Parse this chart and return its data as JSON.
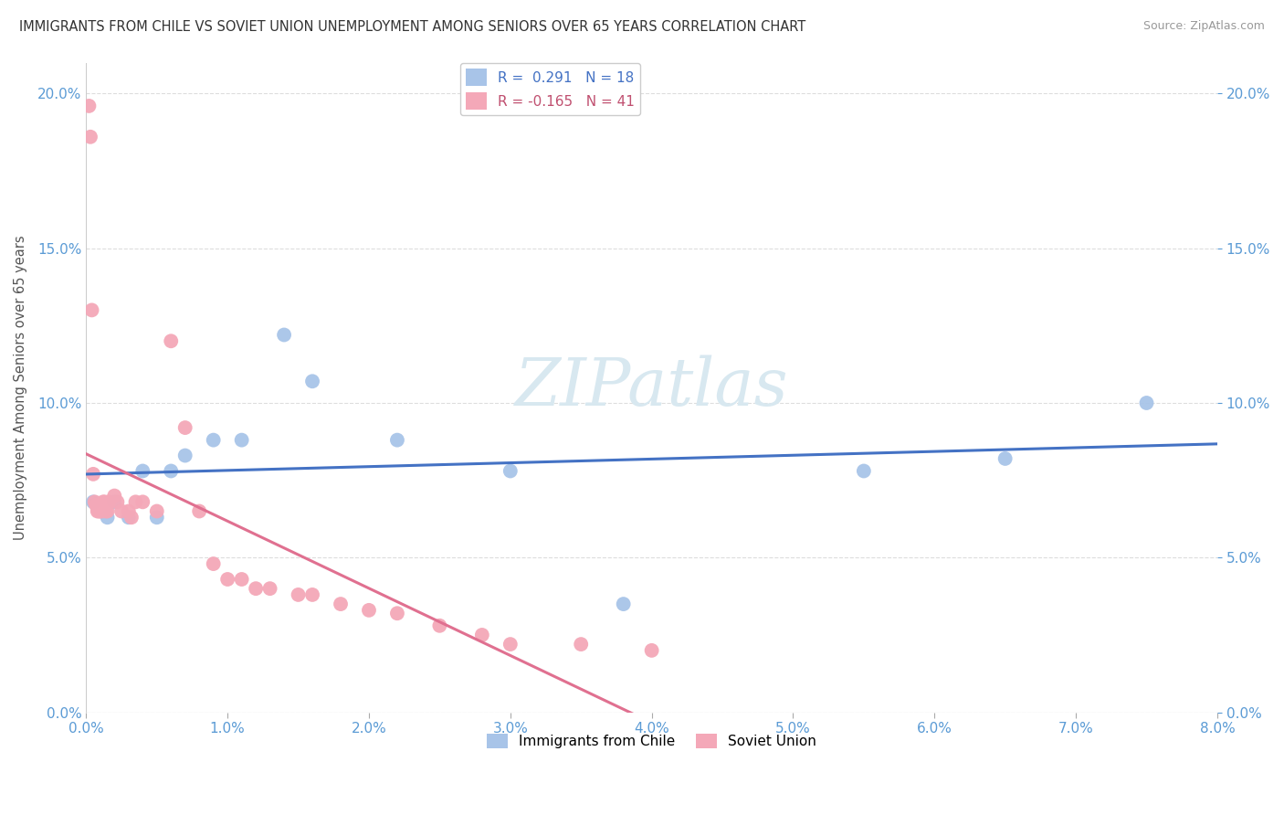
{
  "title": "IMMIGRANTS FROM CHILE VS SOVIET UNION UNEMPLOYMENT AMONG SENIORS OVER 65 YEARS CORRELATION CHART",
  "source": "Source: ZipAtlas.com",
  "ylabel": "Unemployment Among Seniors over 65 years",
  "xlim": [
    0.0,
    0.08
  ],
  "ylim": [
    0.0,
    0.21
  ],
  "xticks": [
    0.0,
    0.01,
    0.02,
    0.03,
    0.04,
    0.05,
    0.06,
    0.07,
    0.08
  ],
  "yticks": [
    0.0,
    0.05,
    0.1,
    0.15,
    0.2
  ],
  "chile_R": 0.291,
  "chile_N": 18,
  "soviet_R": -0.165,
  "soviet_N": 41,
  "chile_color": "#a8c4e8",
  "soviet_color": "#f4a8b8",
  "chile_line_color": "#4472c4",
  "soviet_line_color": "#e07090",
  "background_color": "#ffffff",
  "grid_color": "#dddddd",
  "axis_tick_color": "#5b9bd5",
  "watermark_color": "#d8e8f0",
  "watermark": "ZIPatlas",
  "chile_x": [
    0.0005,
    0.0015,
    0.002,
    0.003,
    0.004,
    0.005,
    0.006,
    0.007,
    0.009,
    0.011,
    0.014,
    0.016,
    0.022,
    0.03,
    0.038,
    0.055,
    0.065,
    0.075
  ],
  "chile_y": [
    0.068,
    0.063,
    0.068,
    0.063,
    0.078,
    0.063,
    0.078,
    0.083,
    0.088,
    0.088,
    0.122,
    0.107,
    0.088,
    0.078,
    0.035,
    0.078,
    0.082,
    0.1
  ],
  "soviet_x": [
    0.0002,
    0.0003,
    0.0004,
    0.0005,
    0.0006,
    0.0007,
    0.0008,
    0.0009,
    0.001,
    0.0011,
    0.0012,
    0.0013,
    0.0014,
    0.0015,
    0.0016,
    0.002,
    0.0022,
    0.0025,
    0.003,
    0.0032,
    0.0035,
    0.004,
    0.005,
    0.006,
    0.007,
    0.008,
    0.009,
    0.01,
    0.011,
    0.012,
    0.013,
    0.015,
    0.016,
    0.018,
    0.02,
    0.022,
    0.025,
    0.028,
    0.03,
    0.035,
    0.04
  ],
  "soviet_y": [
    0.196,
    0.186,
    0.13,
    0.077,
    0.068,
    0.067,
    0.065,
    0.065,
    0.065,
    0.065,
    0.068,
    0.068,
    0.065,
    0.065,
    0.068,
    0.07,
    0.068,
    0.065,
    0.065,
    0.063,
    0.068,
    0.068,
    0.065,
    0.12,
    0.092,
    0.065,
    0.048,
    0.043,
    0.043,
    0.04,
    0.04,
    0.038,
    0.038,
    0.035,
    0.033,
    0.032,
    0.028,
    0.025,
    0.022,
    0.022,
    0.02
  ]
}
